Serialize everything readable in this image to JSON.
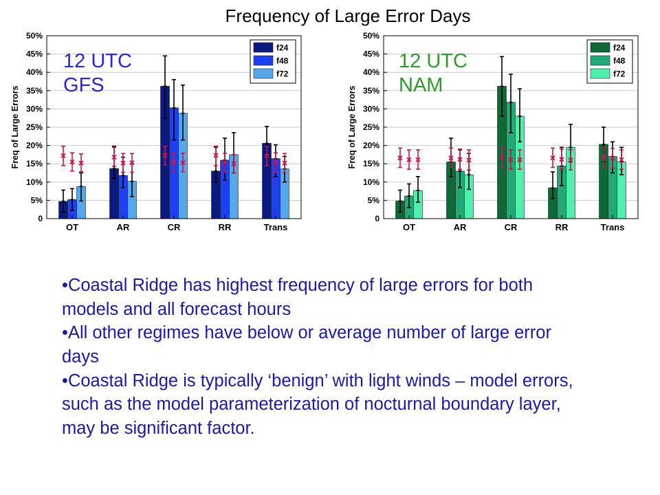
{
  "title": "Frequency of Large Error Days",
  "bullets": [
    "Coastal Ridge has highest frequency of large errors for both models and all forecast hours",
    "All other regimes have below or average number of large error days",
    "Coastal Ridge is typically ‘benign’ with light winds – model errors, such as the model parameterization of nocturnal boundary layer, may be significant factor."
  ],
  "bullet_marker": "•",
  "chart_data": [
    {
      "type": "bar",
      "panel_label": "12 UTC\nGFS",
      "ylabel": "Freq of Large Errors",
      "ylim": [
        0,
        50
      ],
      "yticks": [
        "0",
        "5%",
        "10%",
        "15%",
        "20%",
        "25%",
        "30%",
        "35%",
        "40%",
        "45%",
        "50%"
      ],
      "categories": [
        "OT",
        "AR",
        "CR",
        "RR",
        "Trans"
      ],
      "grid": true,
      "legend_position": "top-right",
      "series": [
        {
          "name": "f24",
          "color": "#0a1a80",
          "values": [
            4.7,
            13.7,
            36.2,
            13.0,
            20.6
          ],
          "err_low": [
            1.8,
            11.0,
            27.5,
            10.0,
            16.5
          ],
          "err_high": [
            7.8,
            19.8,
            44.5,
            19.5,
            25.2
          ]
        },
        {
          "name": "f48",
          "color": "#1f3ff5",
          "values": [
            5.2,
            11.8,
            30.3,
            16.0,
            16.4
          ],
          "err_low": [
            2.2,
            8.5,
            21.5,
            10.5,
            11.5
          ],
          "err_high": [
            8.2,
            16.8,
            38.0,
            22.0,
            20.2
          ]
        },
        {
          "name": "f72",
          "color": "#56a8ec",
          "values": [
            8.8,
            10.2,
            28.8,
            17.5,
            13.6
          ],
          "err_low": [
            4.8,
            6.0,
            21.5,
            12.5,
            10.0
          ],
          "err_high": [
            12.5,
            15.0,
            36.5,
            23.5,
            17.0
          ]
        }
      ],
      "climatology": {
        "color": "#c8154a",
        "values": [
          [
            17.2,
            15.5,
            15.2
          ],
          [
            16.8,
            15.2,
            15.3
          ],
          [
            17.3,
            15.4,
            15.3
          ],
          [
            17.3,
            15.3,
            15.0
          ],
          [
            17.1,
            15.4,
            15.2
          ]
        ],
        "err_low": [
          [
            14.5,
            13.0,
            12.8
          ],
          [
            14.3,
            12.7,
            12.7
          ],
          [
            14.7,
            12.8,
            12.8
          ],
          [
            14.5,
            12.7,
            12.5
          ],
          [
            14.5,
            12.7,
            12.5
          ]
        ],
        "err_high": [
          [
            19.8,
            18.0,
            17.7
          ],
          [
            19.5,
            17.8,
            17.8
          ],
          [
            19.8,
            18.0,
            17.9
          ],
          [
            19.8,
            17.8,
            17.5
          ],
          [
            19.7,
            18.0,
            17.8
          ]
        ]
      }
    },
    {
      "type": "bar",
      "panel_label": "12 UTC\nNAM",
      "ylabel": "Freq of Large Errors",
      "ylim": [
        0,
        50
      ],
      "yticks": [
        "0",
        "5%",
        "10%",
        "15%",
        "20%",
        "25%",
        "30%",
        "35%",
        "40%",
        "45%",
        "50%"
      ],
      "categories": [
        "OT",
        "AR",
        "CR",
        "RR",
        "Trans"
      ],
      "grid": true,
      "legend_position": "top-right",
      "series": [
        {
          "name": "f24",
          "color": "#0b6a35",
          "values": [
            4.8,
            15.5,
            36.2,
            8.4,
            20.3
          ],
          "err_low": [
            1.8,
            11.5,
            28.0,
            5.5,
            15.5
          ],
          "err_high": [
            7.8,
            22.0,
            44.3,
            12.8,
            25.0
          ]
        },
        {
          "name": "f48",
          "color": "#22a978",
          "values": [
            6.2,
            13.0,
            31.8,
            14.4,
            17.0
          ],
          "err_low": [
            3.0,
            8.5,
            23.5,
            9.0,
            12.5
          ],
          "err_high": [
            9.5,
            18.8,
            39.5,
            19.5,
            21.0
          ]
        },
        {
          "name": "f72",
          "color": "#4ff0ae",
          "values": [
            7.7,
            12.0,
            28.0,
            19.5,
            15.5
          ],
          "err_low": [
            4.5,
            8.0,
            21.0,
            15.5,
            12.0
          ],
          "err_high": [
            11.5,
            17.8,
            35.5,
            25.8,
            19.5
          ]
        }
      ],
      "climatology": {
        "color": "#c8154a",
        "values": [
          [
            16.6,
            16.1,
            16.1
          ],
          [
            16.6,
            16.2,
            16.0
          ],
          [
            16.7,
            16.1,
            16.1
          ],
          [
            16.6,
            16.2,
            16.0
          ],
          [
            16.8,
            16.5,
            16.1
          ]
        ],
        "err_low": [
          [
            14.0,
            13.5,
            13.5
          ],
          [
            14.0,
            13.5,
            13.3
          ],
          [
            14.0,
            13.5,
            13.5
          ],
          [
            14.0,
            13.5,
            13.3
          ],
          [
            14.0,
            13.8,
            13.5
          ]
        ],
        "err_high": [
          [
            19.3,
            18.8,
            18.8
          ],
          [
            19.3,
            19.0,
            18.8
          ],
          [
            19.5,
            18.8,
            18.8
          ],
          [
            19.3,
            19.0,
            18.8
          ],
          [
            19.5,
            19.2,
            18.8
          ]
        ]
      }
    }
  ]
}
